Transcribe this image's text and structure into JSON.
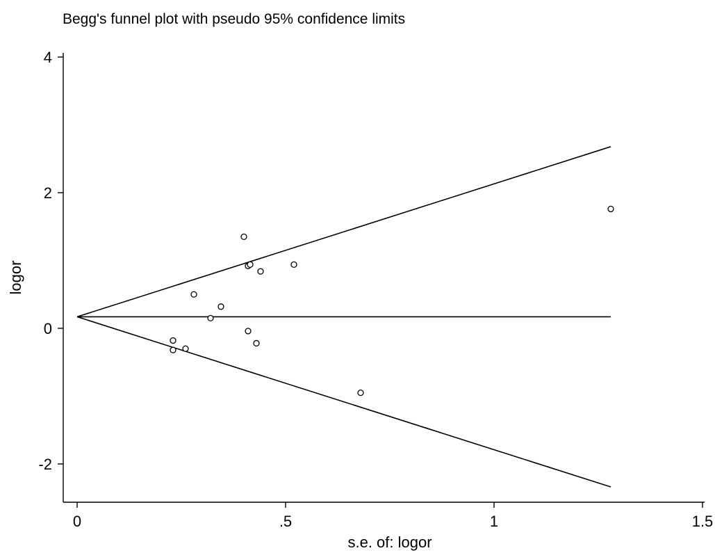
{
  "chart_data": {
    "type": "scatter",
    "title": "Begg's funnel plot with pseudo 95% confidence limits",
    "xlabel": "s.e. of: logor",
    "ylabel": "logor",
    "xlim": [
      0,
      1.5
    ],
    "ylim": [
      -2.55,
      4.2
    ],
    "x_ticks": [
      {
        "value": 0,
        "label": "0"
      },
      {
        "value": 0.5,
        "label": ".5"
      },
      {
        "value": 1,
        "label": "1"
      },
      {
        "value": 1.5,
        "label": "1.5"
      }
    ],
    "y_ticks": [
      {
        "value": -2,
        "label": "-2"
      },
      {
        "value": 0,
        "label": "0"
      },
      {
        "value": 2,
        "label": "2"
      },
      {
        "value": 4,
        "label": "4"
      }
    ],
    "grid": false,
    "legend": "none",
    "pooled_estimate": 0.17,
    "se_range": [
      0,
      1.28
    ],
    "confidence_z": 1.96,
    "points": [
      {
        "x": 0.23,
        "y": -0.32
      },
      {
        "x": 0.23,
        "y": -0.18
      },
      {
        "x": 0.26,
        "y": -0.3
      },
      {
        "x": 0.28,
        "y": 0.5
      },
      {
        "x": 0.32,
        "y": 0.15
      },
      {
        "x": 0.345,
        "y": 0.32
      },
      {
        "x": 0.4,
        "y": 1.35
      },
      {
        "x": 0.41,
        "y": -0.04
      },
      {
        "x": 0.41,
        "y": 0.92
      },
      {
        "x": 0.415,
        "y": 0.94
      },
      {
        "x": 0.43,
        "y": -0.22
      },
      {
        "x": 0.44,
        "y": 0.84
      },
      {
        "x": 0.52,
        "y": 0.94
      },
      {
        "x": 0.68,
        "y": -0.95
      },
      {
        "x": 1.28,
        "y": 1.76
      }
    ]
  }
}
